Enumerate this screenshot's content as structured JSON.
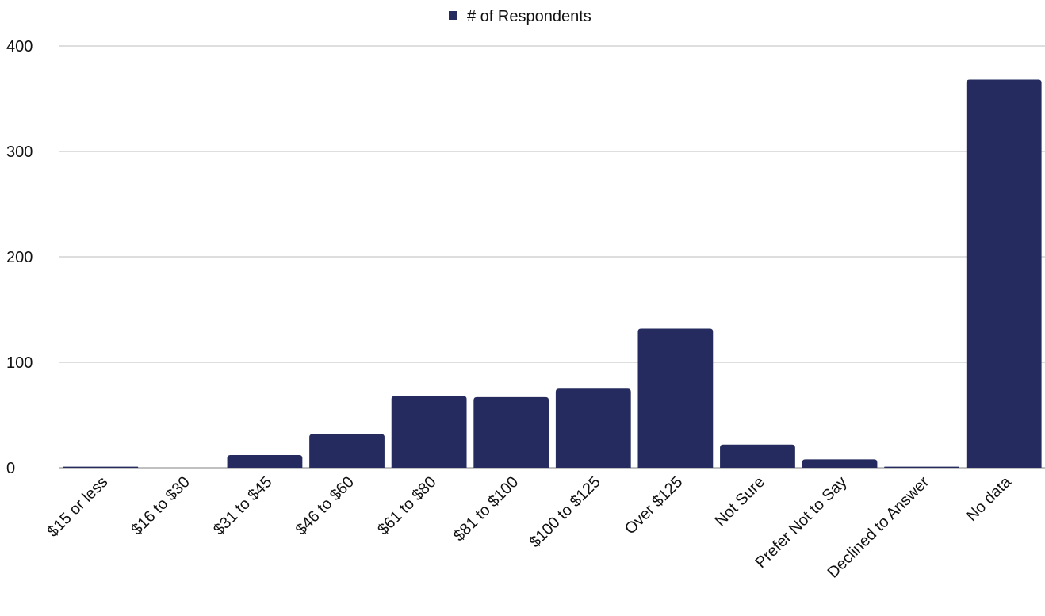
{
  "chart_data": {
    "type": "bar",
    "title": "",
    "xlabel": "",
    "ylabel": "",
    "categories": [
      "$15 or less",
      "$16 to $30",
      "$31 to $45",
      "$46 to $60",
      "$61 to $80",
      "$81 to $100",
      "$100 to $125",
      "Over $125",
      "Not Sure",
      "Prefer Not to Say",
      "Declined to Answer",
      "No data"
    ],
    "series": [
      {
        "name": "# of Respondents",
        "color": "#252b5e",
        "values": [
          1,
          0,
          12,
          32,
          68,
          67,
          75,
          132,
          22,
          8,
          1,
          368
        ]
      }
    ],
    "ylim": [
      0,
      400
    ],
    "yticks": [
      0,
      100,
      200,
      300,
      400
    ],
    "grid": true,
    "legend": {
      "position": "top-center",
      "entries": [
        "# of Respondents"
      ]
    }
  }
}
